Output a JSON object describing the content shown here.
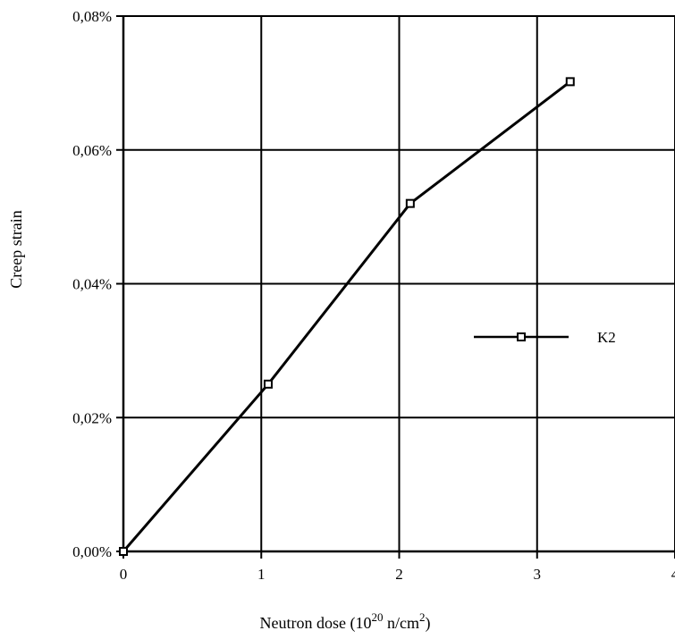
{
  "chart_data": {
    "type": "line",
    "title": "",
    "xlabel": {
      "prefix": "Neutron dose (10",
      "exp": "20",
      "mid": " n/cm",
      "exp2": "2",
      "suffix": ")"
    },
    "ylabel": "Creep strain",
    "xlim": [
      0,
      4
    ],
    "ylim": [
      0,
      0.08
    ],
    "x_ticks": [
      0,
      1,
      2,
      3,
      4
    ],
    "x_tick_labels": [
      "0",
      "1",
      "2",
      "3",
      "4"
    ],
    "y_ticks": [
      0,
      0.02,
      0.04,
      0.06,
      0.08
    ],
    "y_tick_labels": [
      "0,00%",
      "0,02%",
      "0,04%",
      "0,06%",
      "0,08%"
    ],
    "grid": true,
    "legend_position": "right",
    "series": [
      {
        "name": "K2",
        "marker": "open-square",
        "color": "#000000",
        "x": [
          0,
          1.05,
          2.08,
          3.24
        ],
        "y": [
          0,
          0.025,
          0.052,
          0.0702
        ]
      }
    ]
  }
}
